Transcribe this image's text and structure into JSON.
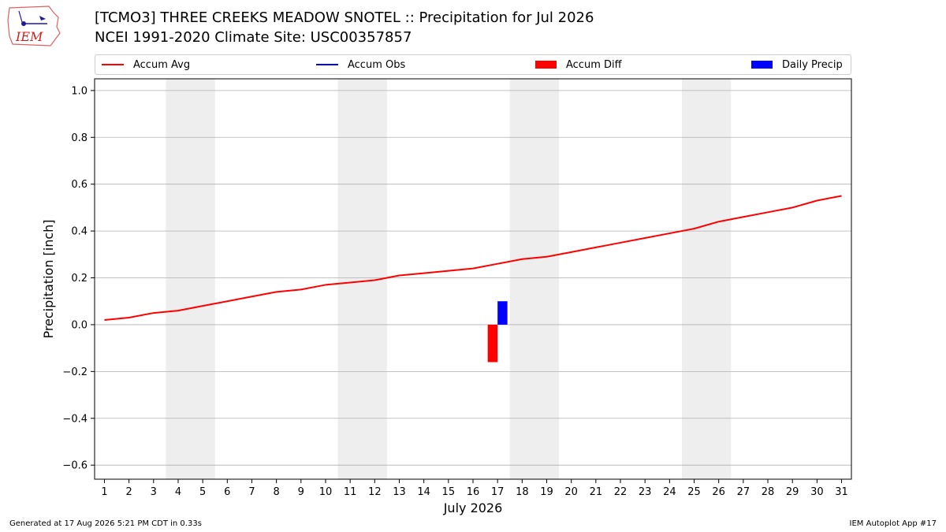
{
  "header": {
    "logo_text": "IEM",
    "title_line1": "[TCMO3] THREE CREEKS MEADOW SNOTEL :: Precipitation for Jul 2026",
    "title_line2": "NCEI 1991-2020 Climate Site: USC00357857"
  },
  "footer": {
    "generated": "Generated at 17 Aug 2026 5:21 PM CDT in 0.33s",
    "app": "IEM Autoplot App #17"
  },
  "colors": {
    "accum_avg": "#ff0000",
    "accum_obs": "#0000ff",
    "accum_diff": "#ff0000",
    "daily_precip": "#0000ff",
    "weekend_band": "#eeeeee",
    "grid": "#b0b0b0"
  },
  "chart_data": {
    "type": "line",
    "xlabel": "July 2026",
    "ylabel": "Precipitation [inch]",
    "xlim": [
      0.6,
      31.4
    ],
    "ylim": [
      -0.66,
      1.05
    ],
    "x_ticks": [
      1,
      2,
      3,
      4,
      5,
      6,
      7,
      8,
      9,
      10,
      11,
      12,
      13,
      14,
      15,
      16,
      17,
      18,
      19,
      20,
      21,
      22,
      23,
      24,
      25,
      26,
      27,
      28,
      29,
      30,
      31
    ],
    "y_ticks": [
      -0.6,
      -0.4,
      -0.2,
      0.0,
      0.2,
      0.4,
      0.6,
      0.8,
      1.0
    ],
    "y_tick_labels": [
      "−0.6",
      "−0.4",
      "−0.2",
      "0.0",
      "0.2",
      "0.4",
      "0.6",
      "0.8",
      "1.0"
    ],
    "grid": "horizontal",
    "legend_placement": "top, above plot",
    "weekend_shading": [
      [
        3.5,
        5.5
      ],
      [
        10.5,
        12.5
      ],
      [
        17.5,
        19.5
      ],
      [
        24.5,
        26.5
      ]
    ],
    "legend": [
      {
        "label": "Accum Avg",
        "style": "line",
        "color": "#ff0000"
      },
      {
        "label": "Accum Obs",
        "style": "line",
        "color": "#0000ff"
      },
      {
        "label": "Accum Diff",
        "style": "patch",
        "color": "#ff0000"
      },
      {
        "label": "Daily Precip",
        "style": "patch",
        "color": "#0000ff"
      }
    ],
    "series": [
      {
        "name": "Accum Avg",
        "type": "line",
        "color": "#ff0000",
        "x": [
          1,
          2,
          3,
          4,
          5,
          6,
          7,
          8,
          9,
          10,
          11,
          12,
          13,
          14,
          15,
          16,
          17,
          18,
          19,
          20,
          21,
          22,
          23,
          24,
          25,
          26,
          27,
          28,
          29,
          30,
          31
        ],
        "values": [
          0.02,
          0.03,
          0.05,
          0.06,
          0.08,
          0.1,
          0.12,
          0.14,
          0.15,
          0.17,
          0.18,
          0.19,
          0.21,
          0.22,
          0.23,
          0.24,
          0.26,
          0.28,
          0.29,
          0.31,
          0.33,
          0.35,
          0.37,
          0.39,
          0.41,
          0.44,
          0.46,
          0.48,
          0.5,
          0.53,
          0.55
        ]
      },
      {
        "name": "Accum Diff",
        "type": "bar",
        "color": "#ff0000",
        "x": [
          16.8
        ],
        "values": [
          -0.16
        ]
      },
      {
        "name": "Daily Precip",
        "type": "bar",
        "color": "#0000ff",
        "x": [
          17.2
        ],
        "values": [
          0.1
        ]
      }
    ]
  }
}
